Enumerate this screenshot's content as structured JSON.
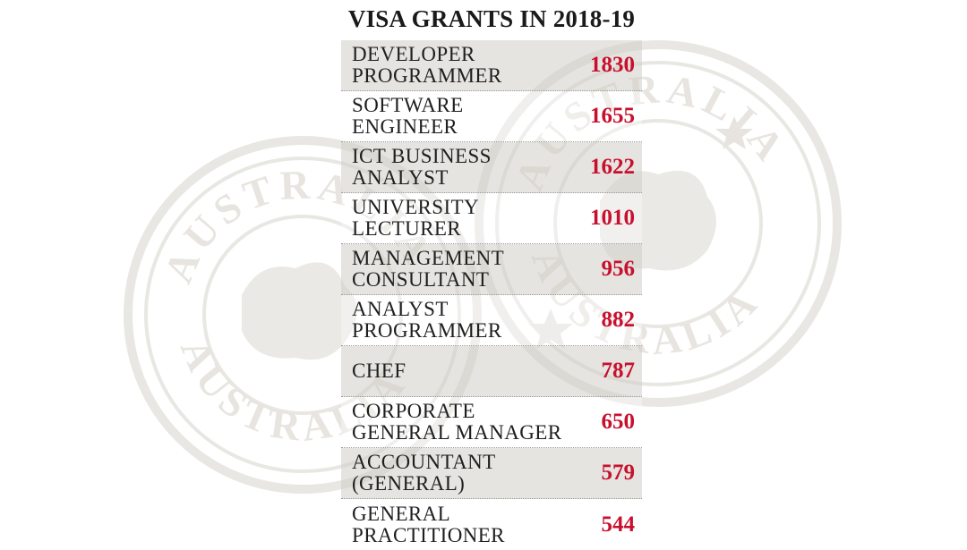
{
  "chart_data": {
    "type": "table",
    "title": "VISA GRANTS IN 2018-19",
    "rows": [
      {
        "label": "DEVELOPER\nPROGRAMMER",
        "value": 1830
      },
      {
        "label": "SOFTWARE\nENGINEER",
        "value": 1655
      },
      {
        "label": "ICT BUSINESS\nANALYST",
        "value": 1622
      },
      {
        "label": "UNIVERSITY\nLECTURER",
        "value": 1010
      },
      {
        "label": "MANAGEMENT\nCONSULTANT",
        "value": 956
      },
      {
        "label": "ANALYST\nPROGRAMMER",
        "value": 882
      },
      {
        "label": "CHEF",
        "value": 787
      },
      {
        "label": "CORPORATE\nGENERAL MANAGER",
        "value": 650
      },
      {
        "label": "ACCOUNTANT\n(GENERAL)",
        "value": 579
      },
      {
        "label": "GENERAL\nPRACTITIONER",
        "value": 544
      }
    ],
    "value_color": "#c8102e"
  },
  "background": {
    "stamp_text": "AUSTRALIA",
    "stamp_color": "#c9c4bc"
  }
}
